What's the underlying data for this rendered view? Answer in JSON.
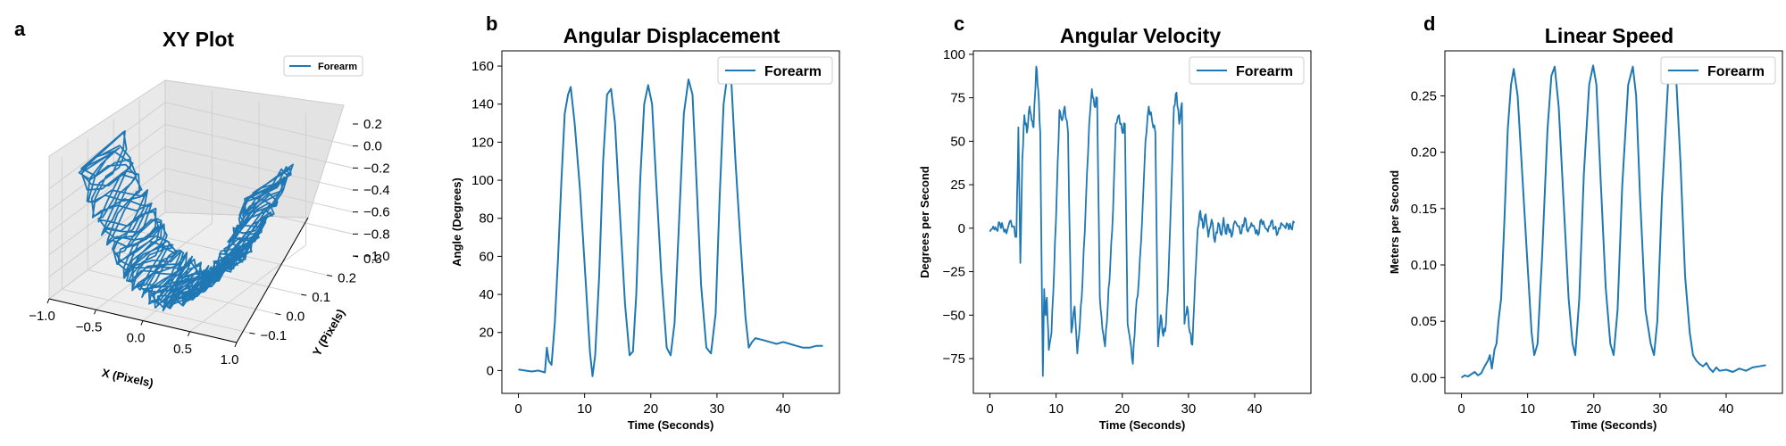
{
  "colors": {
    "line": "#1f77b4",
    "pane_floor": "#eeeeee",
    "pane_wall": "#e6e6e6",
    "grid": "#d0d0d0"
  },
  "chart_data": [
    {
      "panel": "a",
      "type": "line",
      "projection": "3d",
      "title": "XY Plot",
      "xlabel": "X (Pixels)",
      "ylabel": "Y (Pixels)",
      "zlabel": "",
      "xlim": [
        -1.0,
        1.0
      ],
      "ylim": [
        -0.15,
        0.3
      ],
      "zlim": [
        -1.0,
        0.2
      ],
      "xticks": [
        "−1.0",
        "−0.5",
        "0.0",
        "0.5",
        "1.0"
      ],
      "yticks": [
        "−0.1",
        "0.0",
        "0.1",
        "0.2",
        "0.3"
      ],
      "zticks": [
        "0.2",
        "0.0",
        "−0.2",
        "−0.4",
        "−0.6",
        "−0.8",
        "−1.0"
      ],
      "legend": {
        "labels": [
          "Forearm"
        ],
        "placement": "top-right"
      },
      "series": [
        {
          "name": "Forearm",
          "cycles": 5,
          "shape": "U-shaped arc",
          "x_range": [
            -0.85,
            0.95
          ],
          "y_range": [
            -0.1,
            0.1
          ],
          "z_range": [
            -0.95,
            0.15
          ]
        }
      ]
    },
    {
      "panel": "b",
      "type": "line",
      "title": "Angular Displacement",
      "xlabel": "Time (Seconds)",
      "ylabel": "Angle (Degrees)",
      "xlim": [
        -2.5,
        48.5
      ],
      "ylim": [
        -12,
        168
      ],
      "xticks": [
        0,
        10,
        20,
        30,
        40
      ],
      "yticks": [
        0,
        20,
        40,
        60,
        80,
        100,
        120,
        140,
        160
      ],
      "grid": false,
      "legend": {
        "labels": [
          "Forearm"
        ],
        "placement": "top-right"
      },
      "series": [
        {
          "name": "Forearm",
          "x": [
            0,
            1,
            2,
            3,
            4,
            4.3,
            4.6,
            5,
            5.5,
            6,
            6.5,
            7,
            7.5,
            7.9,
            8.5,
            9.3,
            10.2,
            10.8,
            11.2,
            11.6,
            12.2,
            12.8,
            13.4,
            14.0,
            14.6,
            15.3,
            16.1,
            16.8,
            17.3,
            17.8,
            18.4,
            19.0,
            19.6,
            20.2,
            20.8,
            21.6,
            22.4,
            23.0,
            23.6,
            24.3,
            25.0,
            25.7,
            26.3,
            26.9,
            27.6,
            28.4,
            29.1,
            29.8,
            30.4,
            31.0,
            31.6,
            32.2,
            32.8,
            33.6,
            34.3,
            34.8,
            35.3,
            35.8,
            37,
            38,
            39,
            40,
            41,
            42,
            43,
            44,
            45,
            46
          ],
          "y": [
            0.5,
            0,
            -0.5,
            0,
            -1,
            12,
            5,
            3,
            25,
            60,
            100,
            135,
            145,
            149,
            130,
            95,
            45,
            10,
            -3,
            8,
            50,
            110,
            145,
            148,
            130,
            85,
            35,
            8,
            10,
            40,
            100,
            140,
            150,
            140,
            100,
            50,
            12,
            8,
            25,
            80,
            135,
            153,
            145,
            100,
            45,
            12,
            9,
            30,
            90,
            140,
            156,
            150,
            110,
            65,
            28,
            12,
            15,
            17,
            16,
            15,
            14,
            15,
            14,
            13,
            12,
            12,
            13,
            13
          ]
        }
      ]
    },
    {
      "panel": "c",
      "type": "line",
      "title": "Angular Velocity",
      "xlabel": "Time (Seconds)",
      "ylabel": "Degrees per Second",
      "xlim": [
        -2.5,
        48.5
      ],
      "ylim": [
        -95,
        102
      ],
      "xticks": [
        0,
        10,
        20,
        30,
        40
      ],
      "yticks": [
        -75,
        -50,
        -25,
        0,
        25,
        50,
        75,
        100
      ],
      "grid": false,
      "legend": {
        "labels": [
          "Forearm"
        ],
        "placement": "top-right"
      },
      "series": [
        {
          "name": "Forearm",
          "x": [
            0,
            0.5,
            1,
            1.5,
            2,
            2.5,
            3,
            3.5,
            4,
            4.3,
            4.6,
            4.9,
            5.2,
            5.6,
            6,
            6.3,
            6.6,
            7,
            7.3,
            7.6,
            8.0,
            8.2,
            8.4,
            8.6,
            8.9,
            9.3,
            9.7,
            10.1,
            10.5,
            10.9,
            11.3,
            11.8,
            12.3,
            12.8,
            13.2,
            13.6,
            14.0,
            14.5,
            15.0,
            15.4,
            15.8,
            16.2,
            16.6,
            17.0,
            17.4,
            17.8,
            18.2,
            18.6,
            19.0,
            19.5,
            20.0,
            20.4,
            20.8,
            21.2,
            21.6,
            22.0,
            22.5,
            23.0,
            23.5,
            24.0,
            24.5,
            25.0,
            25.4,
            25.8,
            26.2,
            26.6,
            27.0,
            27.4,
            27.8,
            28.2,
            28.6,
            29.0,
            29.4,
            29.8,
            30.2,
            30.6,
            31.0,
            31.4,
            31.8,
            32.2,
            32.6,
            33.0,
            33.5,
            34.0,
            34.5,
            35.0,
            35.3,
            35.6,
            36.0,
            36.5,
            37,
            37.5,
            38,
            38.5,
            39,
            39.5,
            40,
            40.5,
            41,
            41.5,
            42,
            42.5,
            43,
            43.5,
            44,
            44.5,
            45,
            45.5,
            46
          ],
          "y": [
            -2,
            1,
            -1,
            3,
            0,
            -3,
            4,
            1,
            -5,
            58,
            -20,
            40,
            65,
            55,
            70,
            62,
            58,
            93,
            80,
            55,
            -85,
            -35,
            -50,
            -40,
            -70,
            -60,
            -25,
            20,
            68,
            62,
            70,
            55,
            -60,
            -45,
            -72,
            -55,
            -30,
            15,
            60,
            80,
            70,
            75,
            -40,
            -58,
            -68,
            -45,
            -20,
            10,
            60,
            65,
            55,
            60,
            -55,
            -65,
            -78,
            -50,
            -30,
            5,
            50,
            70,
            62,
            55,
            -68,
            -50,
            -62,
            -55,
            -25,
            20,
            70,
            78,
            60,
            72,
            -55,
            -45,
            -60,
            -67,
            -30,
            0,
            10,
            0,
            8,
            -5,
            5,
            -8,
            3,
            -4,
            6,
            -3,
            2,
            -5,
            4,
            1,
            -3,
            6,
            -2,
            3,
            0,
            -4,
            5,
            1,
            -2,
            4,
            0,
            -3,
            3,
            1,
            2,
            0,
            3
          ],
          "note_trace": "noisy"
        }
      ]
    },
    {
      "panel": "d",
      "type": "line",
      "title": "Linear Speed",
      "xlabel": "Time (Seconds)",
      "ylabel": "Meters per Second",
      "xlim": [
        -2.5,
        48.5
      ],
      "ylim": [
        -0.014,
        0.29
      ],
      "xticks": [
        0,
        10,
        20,
        30,
        40
      ],
      "yticks": [
        0.0,
        0.05,
        0.1,
        0.15,
        0.2,
        0.25
      ],
      "ytick_labels": [
        "0.00",
        "0.05",
        "0.10",
        "0.15",
        "0.20",
        "0.25"
      ],
      "grid": false,
      "legend": {
        "labels": [
          "Forearm"
        ],
        "placement": "top-right"
      },
      "series": [
        {
          "name": "Forearm",
          "x": [
            0,
            0.5,
            1,
            1.5,
            2,
            2.5,
            3,
            3.5,
            4,
            4.3,
            4.6,
            5.0,
            5.3,
            5.6,
            6.0,
            6.5,
            7.0,
            7.5,
            7.9,
            8.5,
            9.2,
            10.0,
            10.6,
            11.0,
            11.5,
            12.2,
            13.0,
            13.6,
            14.1,
            14.7,
            15.4,
            16.2,
            16.8,
            17.2,
            17.8,
            18.5,
            19.3,
            19.9,
            20.4,
            21.0,
            21.8,
            22.5,
            23.0,
            23.6,
            24.3,
            25.2,
            25.9,
            26.4,
            27.0,
            27.8,
            28.6,
            29.1,
            29.6,
            30.3,
            31.2,
            31.9,
            32.5,
            33.1,
            33.8,
            34.5,
            35.0,
            35.5,
            36,
            36.5,
            37,
            37.5,
            38,
            38.5,
            39,
            40,
            41,
            42,
            43,
            44,
            45,
            46
          ],
          "y": [
            0.0,
            0.002,
            0.001,
            0.003,
            0.005,
            0.002,
            0.004,
            0.01,
            0.015,
            0.02,
            0.008,
            0.025,
            0.03,
            0.05,
            0.07,
            0.14,
            0.22,
            0.26,
            0.274,
            0.25,
            0.18,
            0.1,
            0.04,
            0.02,
            0.03,
            0.11,
            0.22,
            0.268,
            0.276,
            0.24,
            0.16,
            0.07,
            0.03,
            0.02,
            0.07,
            0.18,
            0.26,
            0.277,
            0.26,
            0.18,
            0.08,
            0.03,
            0.02,
            0.06,
            0.17,
            0.26,
            0.276,
            0.25,
            0.16,
            0.06,
            0.03,
            0.02,
            0.05,
            0.16,
            0.26,
            0.278,
            0.26,
            0.19,
            0.09,
            0.04,
            0.02,
            0.015,
            0.012,
            0.01,
            0.013,
            0.008,
            0.005,
            0.009,
            0.006,
            0.007,
            0.005,
            0.008,
            0.006,
            0.009,
            0.01,
            0.011
          ]
        }
      ]
    }
  ]
}
